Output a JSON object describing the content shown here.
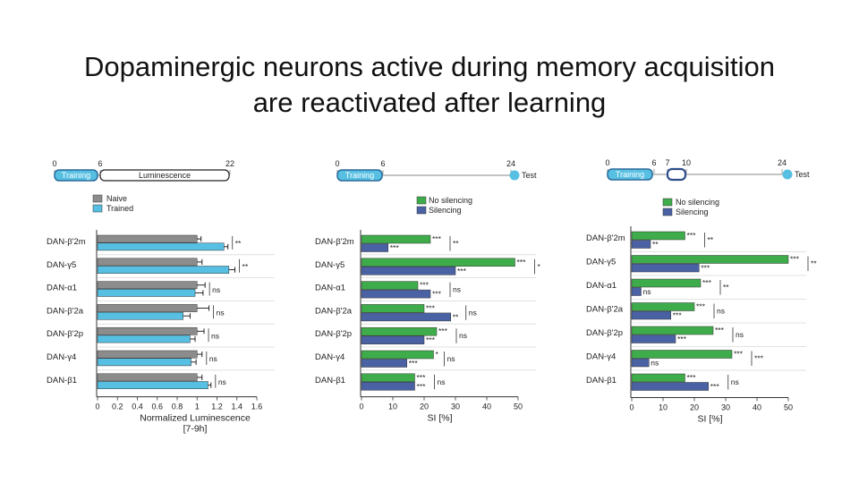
{
  "title": {
    "line1": "Dopaminergic neurons active during memory acquisition",
    "line2": "are reactivated after learning"
  },
  "colors": {
    "naive": "#8c8c8c",
    "trained": "#56bfe2",
    "no_silencing": "#3fac4b",
    "silencing": "#4a62a4",
    "timeline_accent": "#56bfe2"
  },
  "chart_data": [
    {
      "type": "bar",
      "orientation": "horizontal",
      "timeline": {
        "ticks": [
          "0",
          "6",
          "22"
        ],
        "segments": [
          "Training",
          "Luminescence"
        ]
      },
      "legend": [
        "Naive",
        "Trained"
      ],
      "legend_position": "top",
      "categories": [
        "DAN-β'2m",
        "DAN-γ5",
        "DAN-α1",
        "DAN-β'2a",
        "DAN-β'2p",
        "DAN-γ4",
        "DAN-β1"
      ],
      "series": [
        {
          "name": "Naive",
          "values": [
            1.0,
            1.0,
            1.0,
            1.0,
            1.0,
            1.0,
            1.0
          ]
        },
        {
          "name": "Trained",
          "values": [
            1.27,
            1.32,
            0.98,
            0.86,
            0.93,
            0.94,
            1.11
          ]
        }
      ],
      "errors": [
        {
          "name": "Naive",
          "values": [
            0.04,
            0.05,
            0.08,
            0.12,
            0.07,
            0.05,
            0.05
          ]
        },
        {
          "name": "Trained",
          "values": [
            0.04,
            0.06,
            0.08,
            0.07,
            0.05,
            0.05,
            0.03
          ]
        }
      ],
      "significance": [
        "**",
        "**",
        "ns",
        "ns",
        "ns",
        "ns",
        "ns"
      ],
      "xlim": [
        0,
        1.6
      ],
      "xticks": [
        "0",
        "0.2",
        "0.4",
        "0.6",
        "0.8",
        "1",
        "1.2",
        "1.4",
        "1.6"
      ],
      "xlabel": "Normalized Luminescence",
      "xlabel2": "[7-9h]"
    },
    {
      "type": "bar",
      "orientation": "horizontal",
      "timeline": {
        "ticks": [
          "0",
          "6",
          "24"
        ],
        "segments": [
          "Training"
        ],
        "end_label": "Test"
      },
      "legend": [
        "No silencing",
        "Silencing"
      ],
      "legend_position": "top",
      "categories": [
        "DAN-β'2m",
        "DAN-γ5",
        "DAN-α1",
        "DAN-β'2a",
        "DAN-β'2p",
        "DAN-γ4",
        "DAN-β1"
      ],
      "series": [
        {
          "name": "No silencing",
          "values": [
            22,
            49,
            18,
            20,
            24,
            23,
            17
          ]
        },
        {
          "name": "Silencing",
          "values": [
            8.5,
            30,
            22,
            28.5,
            20,
            14.5,
            17
          ]
        }
      ],
      "significance_a": [
        "***",
        "***",
        "***",
        "***",
        "***",
        "*",
        "***"
      ],
      "significance_b": [
        "***",
        "***",
        "***",
        "**",
        "***",
        "***",
        "***"
      ],
      "pair_significance": [
        "**",
        "*",
        "ns",
        "ns",
        "ns",
        "ns",
        "ns"
      ],
      "xlim": [
        0,
        50
      ],
      "xticks": [
        "0",
        "10",
        "20",
        "30",
        "40",
        "50"
      ],
      "xlabel": "SI [%]"
    },
    {
      "type": "bar",
      "orientation": "horizontal",
      "timeline": {
        "ticks": [
          "0",
          "6",
          "7",
          "10",
          "24"
        ],
        "segments": [
          "Training"
        ],
        "end_label": "Test"
      },
      "legend": [
        "No silencing",
        "Silencing"
      ],
      "legend_position": "top",
      "categories": [
        "DAN-β'2m",
        "DAN-γ5",
        "DAN-α1",
        "DAN-β'2a",
        "DAN-β'2p",
        "DAN-γ4",
        "DAN-β1"
      ],
      "series": [
        {
          "name": "No silencing",
          "values": [
            17,
            50,
            22,
            20,
            26,
            32,
            17
          ]
        },
        {
          "name": "Silencing",
          "values": [
            6,
            21.5,
            3,
            12.5,
            14,
            5.5,
            24.5
          ]
        }
      ],
      "significance_a": [
        "***",
        "***",
        "***",
        "***",
        "***",
        "***",
        "***"
      ],
      "significance_b": [
        "**",
        "***",
        "ns",
        "***",
        "***",
        "ns",
        "***"
      ],
      "pair_significance": [
        "**",
        "**",
        "**",
        "ns",
        "ns",
        "***",
        "ns"
      ],
      "xlim": [
        0,
        50
      ],
      "xticks": [
        "0",
        "10",
        "20",
        "30",
        "40",
        "50"
      ],
      "xlabel": "SI [%]"
    }
  ]
}
